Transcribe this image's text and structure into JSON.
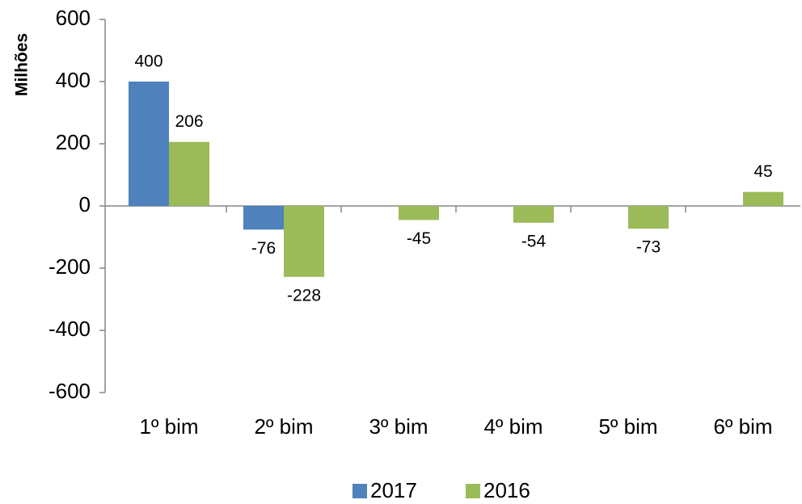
{
  "chart_data": {
    "type": "bar",
    "y_label": "Milhões",
    "categories": [
      "1º bim",
      "2º bim",
      "3º bim",
      "4º bim",
      "5º bim",
      "6º bim"
    ],
    "series": [
      {
        "name": "2017",
        "color": "#4f81bd",
        "values": [
          400,
          -76,
          null,
          null,
          null,
          null
        ]
      },
      {
        "name": "2016",
        "color": "#9bbb59",
        "values": [
          206,
          -228,
          -45,
          -54,
          -73,
          45
        ]
      }
    ],
    "ylim": [
      -600,
      600
    ],
    "yticks": [
      -600,
      -400,
      -200,
      0,
      200,
      400,
      600
    ],
    "grid": false
  }
}
